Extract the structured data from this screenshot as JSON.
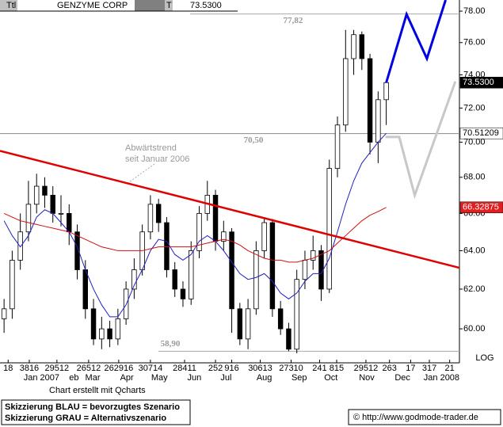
{
  "header": {
    "field1": "Ttl",
    "name": "GENZYME CORP",
    "field2": "T",
    "quote": "73.5300"
  },
  "chart_data": {
    "type": "candlestick",
    "log_scale": true,
    "ohlc": [
      [
        60.5,
        61.5,
        59.8,
        61
      ],
      [
        61,
        64,
        60.5,
        63.5
      ],
      [
        63.5,
        66,
        63,
        65
      ],
      [
        65,
        67.8,
        64.5,
        66.5
      ],
      [
        66.5,
        68.2,
        66,
        67.5
      ],
      [
        67.5,
        68,
        66.3,
        67
      ],
      [
        67,
        67.5,
        65.5,
        66
      ],
      [
        66,
        67,
        65.3,
        66
      ],
      [
        66,
        66.5,
        64.3,
        65
      ],
      [
        65,
        65.4,
        62.5,
        63
      ],
      [
        63,
        63.5,
        60.5,
        61
      ],
      [
        61,
        61.5,
        59.2,
        59.5
      ],
      [
        59.5,
        60.6,
        59,
        60
      ],
      [
        60,
        60.4,
        59.1,
        59.5
      ],
      [
        59.5,
        61,
        59.2,
        60.5
      ],
      [
        60.5,
        62.4,
        60.2,
        62
      ],
      [
        62,
        63.6,
        61.5,
        63
      ],
      [
        63,
        65.4,
        62.7,
        65
      ],
      [
        65,
        67,
        64.6,
        66.5
      ],
      [
        66.5,
        66.8,
        65,
        65.5
      ],
      [
        65.5,
        65.8,
        62.6,
        63
      ],
      [
        63,
        63.4,
        61.6,
        62
      ],
      [
        62,
        62.4,
        61.1,
        61.5
      ],
      [
        61.5,
        64.5,
        61.2,
        64
      ],
      [
        64,
        66.4,
        63.6,
        66
      ],
      [
        66,
        67.8,
        65.6,
        67
      ],
      [
        67,
        67.3,
        64,
        64.5
      ],
      [
        64.5,
        65.6,
        64,
        65
      ],
      [
        65,
        65.2,
        59.8,
        61
      ],
      [
        61,
        61.3,
        59.2,
        59.5
      ],
      [
        59.5,
        61.5,
        59,
        61
      ],
      [
        61,
        64.5,
        60.7,
        64
      ],
      [
        64,
        65.8,
        63.6,
        65.5
      ],
      [
        65.5,
        65.7,
        60.6,
        61
      ],
      [
        61,
        61.4,
        59.7,
        60
      ],
      [
        60,
        60.3,
        58.9,
        59
      ],
      [
        59,
        63,
        58.8,
        62.5
      ],
      [
        62.5,
        64,
        62,
        63.5
      ],
      [
        63.5,
        64.8,
        63,
        64
      ],
      [
        64,
        64.3,
        61.4,
        62
      ],
      [
        62,
        69,
        61.8,
        68.5
      ],
      [
        68.5,
        71.5,
        68,
        71
      ],
      [
        71,
        76.8,
        70.6,
        75
      ],
      [
        75,
        76.8,
        74,
        76.5
      ],
      [
        76.5,
        76.7,
        74.3,
        75
      ],
      [
        75,
        75.3,
        69.3,
        70
      ],
      [
        70,
        73,
        68.8,
        72.5
      ],
      [
        72.5,
        73.6,
        71,
        73.53
      ]
    ],
    "last_label": "73.5300",
    "series": [
      {
        "color": "#2020c0",
        "values": [
          65.6,
          64.8,
          64.2,
          64.8,
          65.8,
          66.2,
          66,
          65.5,
          65,
          64.2,
          63,
          62,
          61.2,
          60.6,
          60.6,
          61.2,
          62.2,
          63,
          64,
          64.6,
          64.5,
          63.8,
          63.5,
          63.8,
          64.5,
          64.8,
          64.5,
          64,
          63.4,
          62.8,
          62.5,
          62.6,
          62.8,
          62.4,
          61.8,
          61.5,
          61.8,
          62.4,
          62.8,
          62.8,
          63.6,
          65,
          66.5,
          67.8,
          68.8,
          69.4,
          70,
          70.51209
        ],
        "last_label": "70.51209"
      },
      {
        "color": "#d01010",
        "values": [
          66,
          65.8,
          65.6,
          65.5,
          65.4,
          65.3,
          65.2,
          65.1,
          65,
          64.8,
          64.6,
          64.4,
          64.2,
          64.1,
          64,
          64,
          64,
          64,
          64.1,
          64.2,
          64.2,
          64.2,
          64.2,
          64.2,
          64.3,
          64.4,
          64.5,
          64.6,
          64.5,
          64.3,
          64,
          63.8,
          63.6,
          63.5,
          63.5,
          63.4,
          63.4,
          63.5,
          63.6,
          63.8,
          64,
          64.4,
          64.8,
          65.2,
          65.6,
          65.9,
          66.1,
          66.32875
        ],
        "last_label": "66.32875"
      }
    ],
    "trendline": {
      "color": "#e00000",
      "points": [
        [
          -0.5,
          69.5
        ],
        [
          56,
          63.1
        ]
      ]
    },
    "scenarios": [
      {
        "color": "#0000e0",
        "points": [
          [
            47,
            73.53
          ],
          [
            49.5,
            77.8
          ],
          [
            52,
            75
          ],
          [
            54.3,
            78.72
          ]
        ]
      },
      {
        "color": "#c8c8c8",
        "points": [
          [
            46.9,
            70.3
          ],
          [
            48.6,
            70.3
          ],
          [
            50.5,
            67
          ],
          [
            55.5,
            73.6
          ]
        ]
      }
    ],
    "hlines": [
      {
        "value": 77.82,
        "label": "77,82"
      },
      {
        "value": 70.5,
        "label": "70,50"
      },
      {
        "value": 58.9,
        "label": "58,90"
      }
    ],
    "annotation": [
      "Abwärtstrend",
      "seit Januar 2006"
    ],
    "ylim": [
      58.76,
      78.72
    ],
    "xlim": [
      -0.5,
      56
    ],
    "yticks": [
      {
        "value": 78,
        "label": "78.00"
      },
      {
        "value": 76,
        "label": "76.00"
      },
      {
        "value": 74,
        "label": "74.00"
      },
      {
        "value": 72,
        "label": "72.00"
      },
      {
        "value": 70,
        "label": "70.00"
      },
      {
        "value": 68,
        "label": "68.00"
      },
      {
        "value": 66,
        "label": "66.00"
      },
      {
        "value": 64,
        "label": "64.00"
      },
      {
        "value": 62,
        "label": "62.00"
      },
      {
        "value": 60,
        "label": "60.00"
      }
    ],
    "xticks": [
      {
        "value": 0.5,
        "label": "18"
      },
      {
        "value": 3.1,
        "label": "3816"
      },
      {
        "value": 6.5,
        "label": "29512"
      },
      {
        "value": 10.4,
        "label": "26512"
      },
      {
        "value": 14.1,
        "label": "262916"
      },
      {
        "value": 18,
        "label": "30714"
      },
      {
        "value": 22.2,
        "label": "28411"
      },
      {
        "value": 26,
        "label": "252"
      },
      {
        "value": 28,
        "label": "916"
      },
      {
        "value": 31.5,
        "label": "30613"
      },
      {
        "value": 35.3,
        "label": "27310"
      },
      {
        "value": 38.8,
        "label": "241"
      },
      {
        "value": 40.9,
        "label": "815"
      },
      {
        "value": 44.5,
        "label": "29512"
      },
      {
        "value": 47.4,
        "label": "263"
      },
      {
        "value": 50,
        "label": "17"
      },
      {
        "value": 52.3,
        "label": "317"
      },
      {
        "value": 54.8,
        "label": "21"
      }
    ],
    "month_labels": [
      {
        "value": 4.6,
        "label": "Jan 2007"
      },
      {
        "value": 8.6,
        "label": "eb"
      },
      {
        "value": 10.9,
        "label": "Mar"
      },
      {
        "value": 15.1,
        "label": "Apr"
      },
      {
        "value": 19.1,
        "label": "May"
      },
      {
        "value": 23.4,
        "label": "Jun"
      },
      {
        "value": 27.3,
        "label": "Jul"
      },
      {
        "value": 32,
        "label": "Aug"
      },
      {
        "value": 36.3,
        "label": "Sep"
      },
      {
        "value": 40.2,
        "label": "Oct"
      },
      {
        "value": 44.6,
        "label": "Nov"
      },
      {
        "value": 49,
        "label": "Dec"
      },
      {
        "value": 53.8,
        "label": "Jan 2008"
      }
    ],
    "scale_label": "LOG"
  },
  "footer": {
    "credit": "Chart erstellt mit Qcharts",
    "note_blue": "Skizzierung BLAU = bevorzugtes Szenario",
    "note_gray": "Skizzierung GRAU = Alternativszenario",
    "source": "© http://www.godmode-trader.de"
  }
}
